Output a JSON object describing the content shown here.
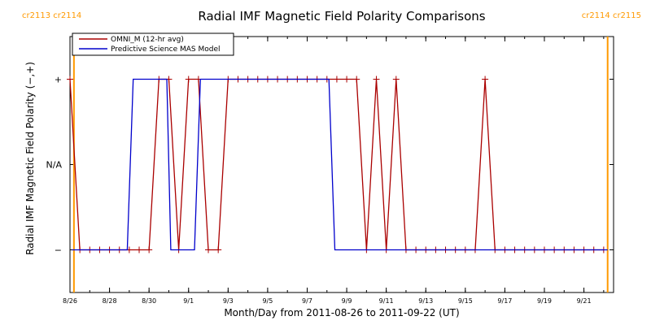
{
  "chart_data": {
    "type": "line",
    "title": "Radial IMF Magnetic Field Polarity Comparisons",
    "xlabel": "Month/Day from 2011-08-26 to 2011-09-22 (UT)",
    "ylabel": "Radial IMF Magnetic Field Polarity (−,+)",
    "x_unit": "day of 2011-08-26 to 2011-09-22 interval",
    "xlim": [
      0,
      27.5
    ],
    "ylim": [
      -1.5,
      1.5
    ],
    "y_ticks": [
      {
        "value": 1,
        "label": "+"
      },
      {
        "value": 0,
        "label": "N/A"
      },
      {
        "value": -1,
        "label": "−"
      }
    ],
    "x_ticks": [
      {
        "x": 0,
        "label": "8/26"
      },
      {
        "x": 2,
        "label": "8/28"
      },
      {
        "x": 4,
        "label": "8/30"
      },
      {
        "x": 6,
        "label": "9/1"
      },
      {
        "x": 8,
        "label": "9/3"
      },
      {
        "x": 10,
        "label": "9/5"
      },
      {
        "x": 12,
        "label": "9/7"
      },
      {
        "x": 14,
        "label": "9/9"
      },
      {
        "x": 16,
        "label": "9/11"
      },
      {
        "x": 18,
        "label": "9/13"
      },
      {
        "x": 20,
        "label": "9/15"
      },
      {
        "x": 22,
        "label": "9/17"
      },
      {
        "x": 24,
        "label": "9/19"
      },
      {
        "x": 26,
        "label": "9/21"
      }
    ],
    "carrington_markers": [
      {
        "x": 0.2,
        "label": "cr2113 cr2114",
        "side": "left",
        "color": "#ff9900"
      },
      {
        "x": 27.2,
        "label": "cr2114 cr2115",
        "side": "right",
        "color": "#ff9900"
      }
    ],
    "legend": {
      "placement": "top-left"
    },
    "series": [
      {
        "name": "OMNI_M (12-hr avg)",
        "color": "#aa0000",
        "x": [
          0,
          0.5,
          1,
          1.5,
          2,
          2.5,
          3,
          3.5,
          4,
          4.5,
          5,
          5.5,
          6,
          6.5,
          7,
          7.5,
          8,
          8.5,
          9,
          9.5,
          10,
          10.5,
          11,
          11.5,
          12,
          12.5,
          13,
          13.5,
          14,
          14.5,
          15,
          15.5,
          16,
          16.5,
          17,
          17.5,
          18,
          18.5,
          19,
          19.5,
          20,
          20.5,
          21,
          21.5,
          22,
          22.5,
          23,
          23.5,
          24,
          24.5,
          25,
          25.5,
          26,
          26.5,
          27
        ],
        "y": [
          1,
          -1,
          -1,
          -1,
          -1,
          -1,
          -1,
          -1,
          -1,
          1,
          1,
          -1,
          1,
          1,
          -1,
          -1,
          1,
          1,
          1,
          1,
          1,
          1,
          1,
          1,
          1,
          1,
          1,
          1,
          1,
          1,
          -1,
          1,
          -1,
          1,
          -1,
          -1,
          -1,
          -1,
          -1,
          -1,
          -1,
          -1,
          1,
          -1,
          -1,
          -1,
          -1,
          -1,
          -1,
          -1,
          -1,
          -1,
          -1,
          -1,
          -1
        ],
        "markers": "plus"
      },
      {
        "name": "Predictive Science MAS Model",
        "color": "#0000cc",
        "x": [
          0.1,
          2.9,
          3.2,
          4.9,
          5.1,
          6.3,
          6.6,
          13.1,
          13.4,
          27.2
        ],
        "y": [
          -1,
          -1,
          1,
          1,
          -1,
          -1,
          1,
          1,
          -1,
          -1
        ]
      }
    ]
  }
}
